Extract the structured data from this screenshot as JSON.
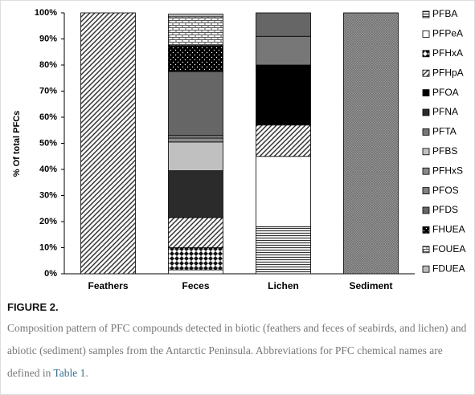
{
  "chart_data": {
    "type": "stacked-bar",
    "ylabel": "% Of total PFCs",
    "categories": [
      "Feathers",
      "Feces",
      "Lichen",
      "Sediment"
    ],
    "ylim": [
      0,
      100
    ],
    "yticks": [
      {
        "value": 0,
        "label": "0%"
      },
      {
        "value": 10,
        "label": "10%"
      },
      {
        "value": 20,
        "label": "20%"
      },
      {
        "value": 30,
        "label": "30%"
      },
      {
        "value": 40,
        "label": "40%"
      },
      {
        "value": 50,
        "label": "50%"
      },
      {
        "value": 60,
        "label": "60%"
      },
      {
        "value": 70,
        "label": "70%"
      },
      {
        "value": 80,
        "label": "80%"
      },
      {
        "value": 90,
        "label": "90%"
      },
      {
        "value": 100,
        "label": "100%"
      }
    ],
    "legend": "right",
    "series": [
      {
        "name": "PFBA",
        "color": "#333333",
        "pattern": "hlines",
        "values": [
          null,
          null,
          18,
          null
        ]
      },
      {
        "name": "PFPeA",
        "color": "#ffffff",
        "pattern": "solid",
        "values": [
          null,
          1.5,
          27,
          null
        ]
      },
      {
        "name": "PFHxA",
        "color": "#111111",
        "pattern": "diamonds",
        "values": [
          null,
          8.5,
          null,
          null
        ]
      },
      {
        "name": "PFHpA",
        "color": "#333333",
        "pattern": "diag",
        "values": [
          100,
          11.5,
          12,
          null
        ]
      },
      {
        "name": "PFOA",
        "color": "#000000",
        "pattern": "solid",
        "values": [
          null,
          null,
          23,
          null
        ]
      },
      {
        "name": "PFNA",
        "color": "#2b2b2b",
        "pattern": "solid",
        "values": [
          null,
          18,
          null,
          null
        ]
      },
      {
        "name": "PFTA",
        "color": "#777777",
        "pattern": "solid",
        "values": [
          null,
          null,
          11,
          null
        ]
      },
      {
        "name": "PFBS",
        "color": "#c0c0c0",
        "pattern": "solid",
        "values": [
          null,
          11,
          null,
          null
        ]
      },
      {
        "name": "PFHxS",
        "color": "#8a8a8a",
        "pattern": "solid",
        "values": [
          null,
          1.5,
          null,
          null
        ]
      },
      {
        "name": "PFOS",
        "color": "#666666",
        "pattern": "cross",
        "values": [
          null,
          1,
          null,
          100
        ]
      },
      {
        "name": "PFDS",
        "color": "#666666",
        "pattern": "solid",
        "values": [
          null,
          24.5,
          9,
          null
        ]
      },
      {
        "name": "FHUEA",
        "color": "#000000",
        "pattern": "dots",
        "values": [
          null,
          10,
          null,
          null
        ]
      },
      {
        "name": "FOUEA",
        "color": "#555555",
        "pattern": "bricks",
        "values": [
          null,
          11,
          null,
          null
        ]
      },
      {
        "name": "FDUEA",
        "color": "#bbbbbb",
        "pattern": "solid",
        "values": [
          null,
          1,
          null,
          null
        ]
      }
    ]
  },
  "caption": {
    "label": "FIGURE 2.",
    "text": "Composition pattern of PFC compounds detected in biotic (feathers and feces of seabirds, and lichen) and abiotic (sediment) samples from the Antarctic Peninsula. Abbreviations for PFC chemical names are defined in ",
    "link": "Table 1",
    "end": "."
  }
}
